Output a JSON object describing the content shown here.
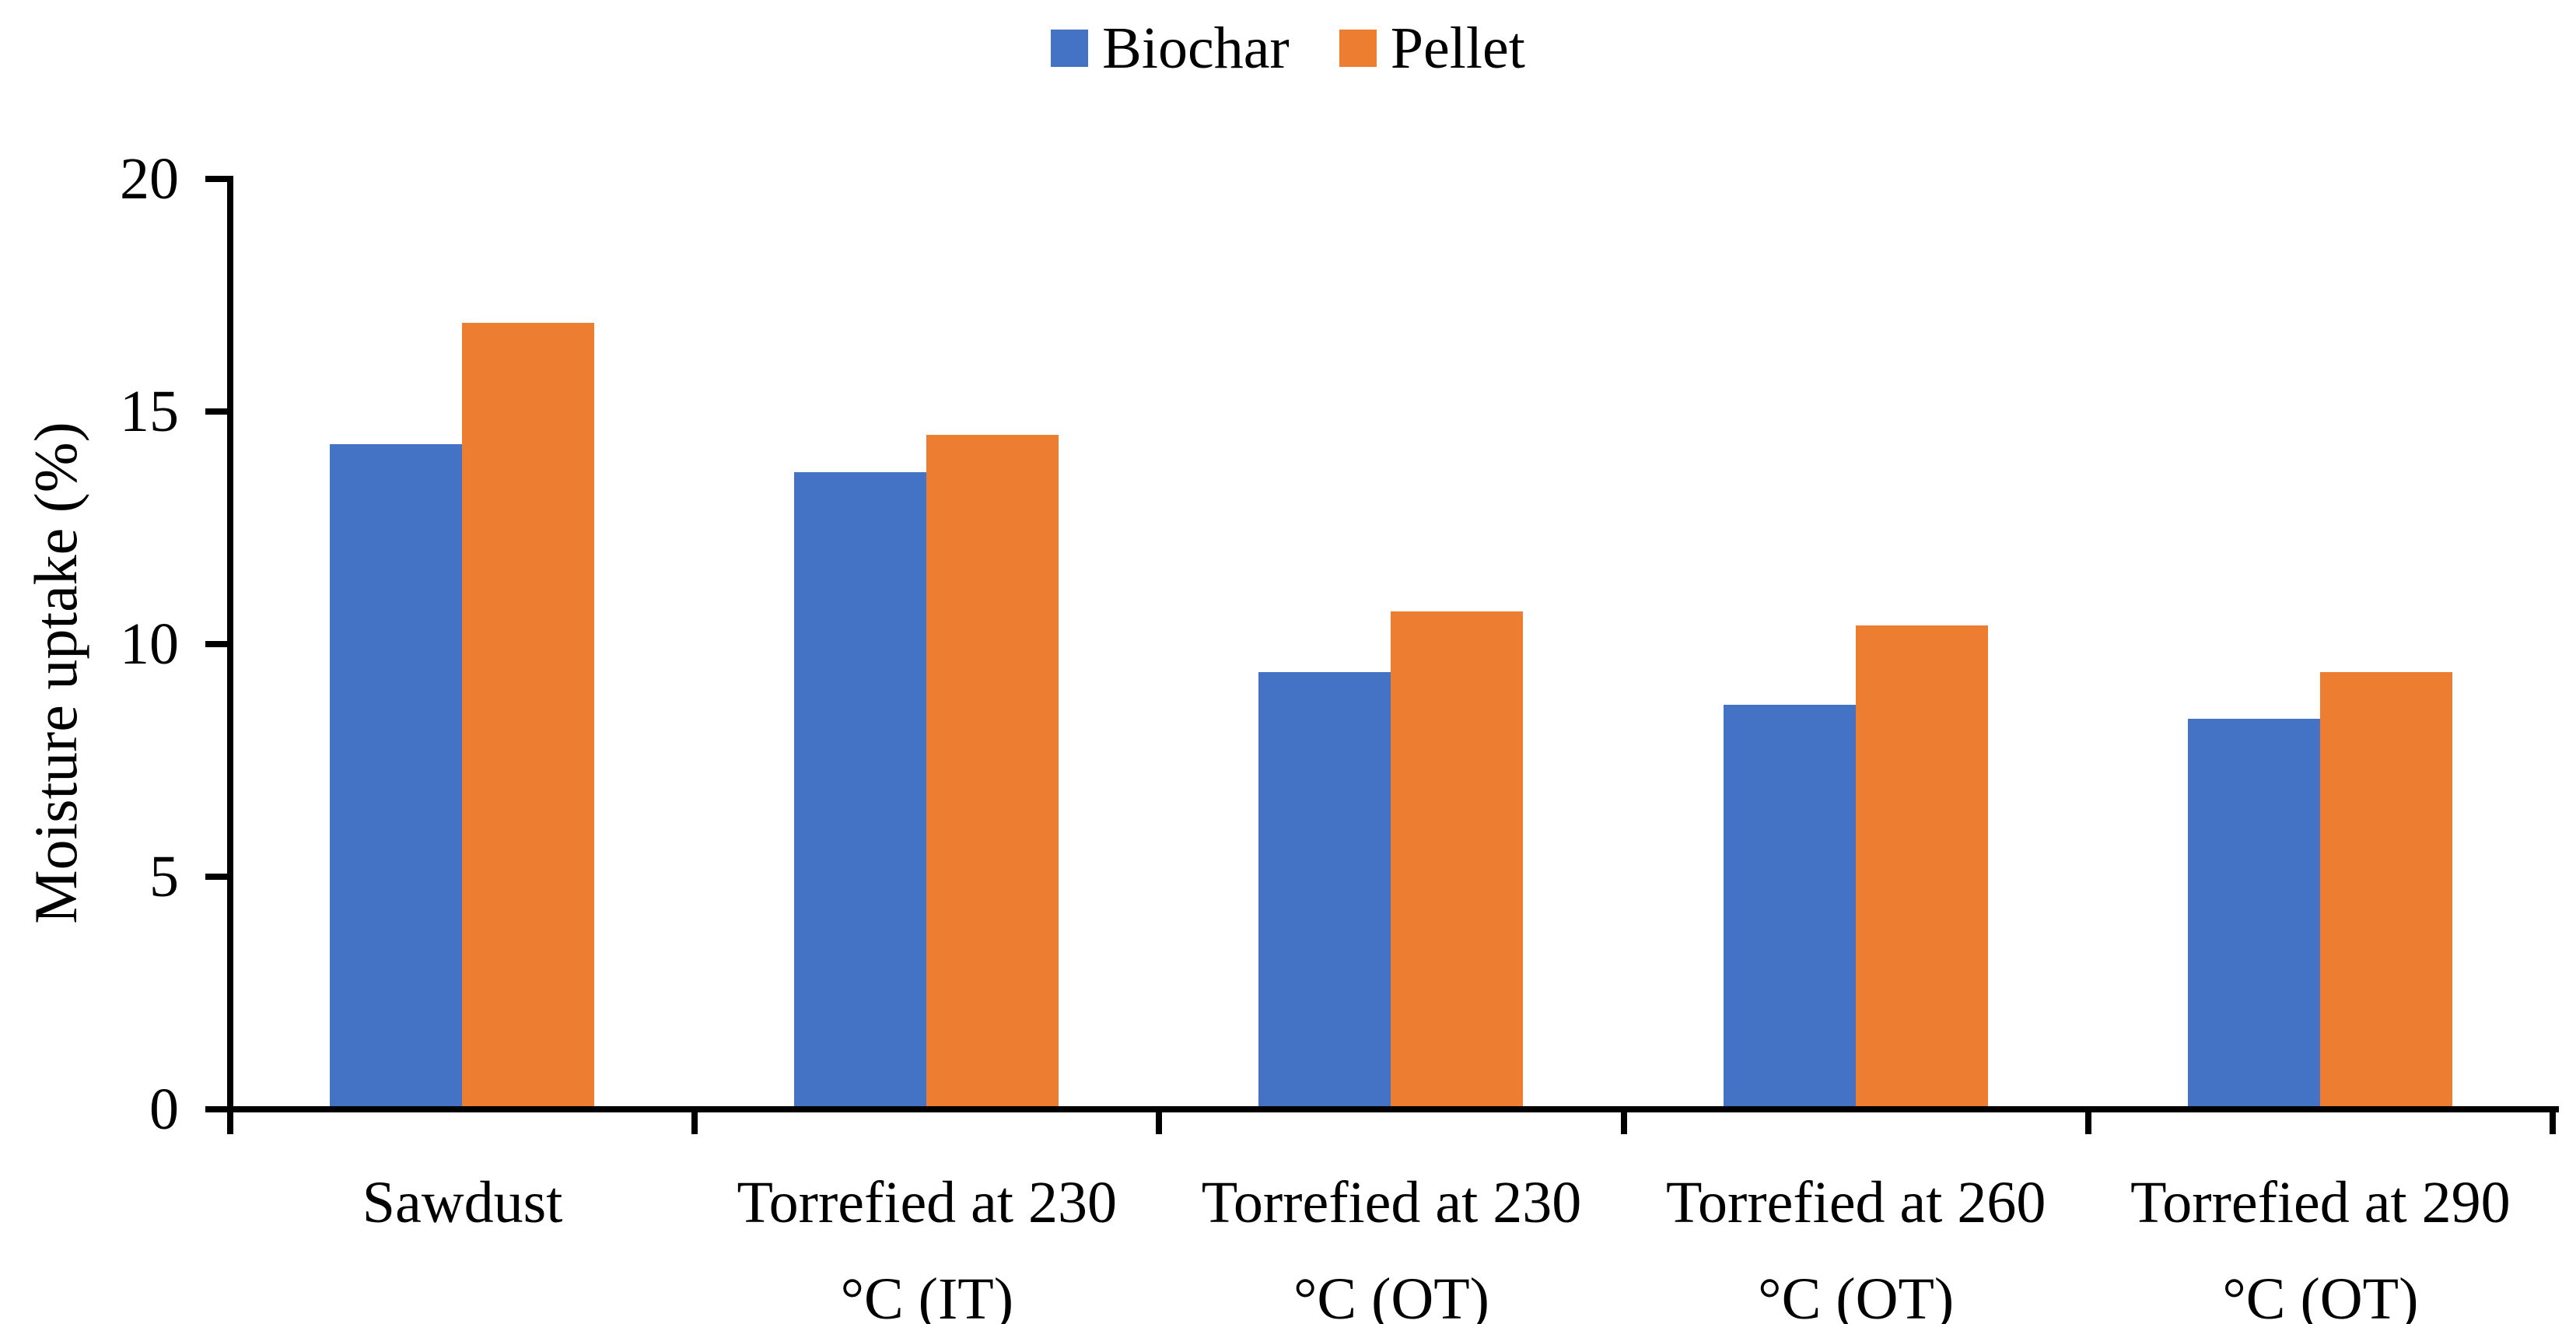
{
  "chart_data": {
    "type": "bar",
    "title": "",
    "ylabel": "Moisture uptake (%)",
    "xlabel": "",
    "ylim": [
      0,
      20
    ],
    "yticks": [
      0,
      5,
      10,
      15,
      20
    ],
    "grid": false,
    "legend_position": "top-center",
    "categories": [
      "Sawdust",
      "Torrefied at 230 °C (IT)",
      "Torrefied at 230 °C (OT)",
      "Torrefied at 260 °C (OT)",
      "Torrefied at 290 °C (OT)"
    ],
    "category_label_lines": [
      [
        "Sawdust"
      ],
      [
        "Torrefied at 230",
        "°C (IT)"
      ],
      [
        "Torrefied at 230",
        "°C (OT)"
      ],
      [
        "Torrefied at 260",
        "°C (OT)"
      ],
      [
        "Torrefied at 290",
        "°C (OT)"
      ]
    ],
    "series": [
      {
        "name": "Biochar",
        "color": "#4472C4",
        "values": [
          14.3,
          13.7,
          9.4,
          8.7,
          8.4
        ]
      },
      {
        "name": "Pellet",
        "color": "#ED7D31",
        "values": [
          16.9,
          14.5,
          10.7,
          10.4,
          9.4
        ]
      }
    ]
  },
  "colors": {
    "axis": "#000000",
    "text": "#000000",
    "background": "#FFFFFF"
  }
}
